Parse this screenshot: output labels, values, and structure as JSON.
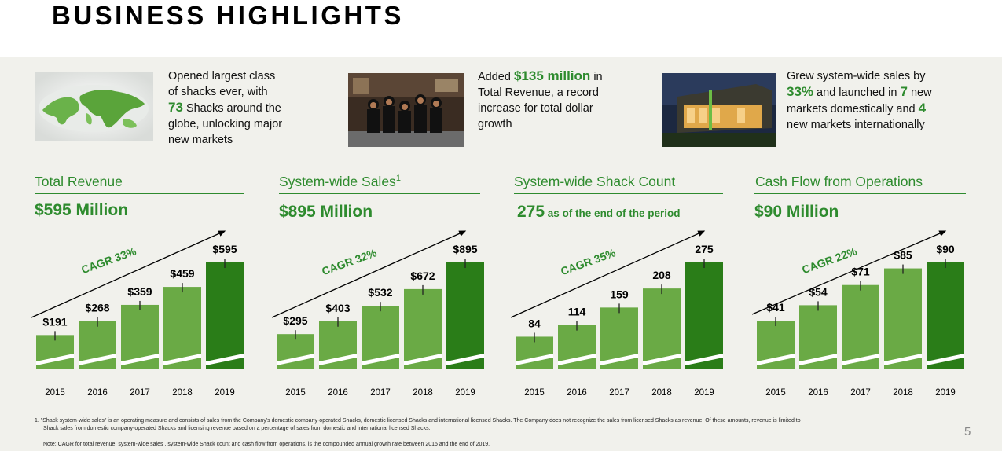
{
  "title": "BUSINESS HIGHLIGHTS",
  "highlights": [
    {
      "lines": [
        [
          {
            "t": "Opened largest class"
          }
        ],
        [
          {
            "t": "of shacks ever, with"
          }
        ],
        [
          {
            "t": "73",
            "g": true
          },
          {
            "t": " Shacks around the"
          }
        ],
        [
          {
            "t": "globe, unlocking major"
          }
        ],
        [
          {
            "t": "new markets"
          }
        ]
      ]
    },
    {
      "lines": [
        [
          {
            "t": "Added "
          },
          {
            "t": "$135 million",
            "g": true
          },
          {
            "t": " in"
          }
        ],
        [
          {
            "t": "Total Revenue, a record"
          }
        ],
        [
          {
            "t": "increase for total dollar"
          }
        ],
        [
          {
            "t": "growth"
          }
        ]
      ]
    },
    {
      "lines": [
        [
          {
            "t": "Grew system-wide sales by"
          }
        ],
        [
          {
            "t": "33%",
            "g": true
          },
          {
            "t": " and launched in "
          },
          {
            "t": "7",
            "g": true
          },
          {
            "t": " new"
          }
        ],
        [
          {
            "t": "markets domestically and "
          },
          {
            "t": "4",
            "g": true
          }
        ],
        [
          {
            "t": "new markets internationally"
          }
        ]
      ]
    }
  ],
  "sections": [
    {
      "title": "Total Revenue",
      "title_sup": "",
      "value": "$595 Million",
      "value_sub": ""
    },
    {
      "title": "System-wide Sales",
      "title_sup": "1",
      "value": "$895 Million",
      "value_sub": ""
    },
    {
      "title": "System-wide Shack Count",
      "title_sup": "",
      "value": "275",
      "value_sub": " as of the end of the period"
    },
    {
      "title": "Cash Flow from Operations",
      "title_sup": "",
      "value": "$90 Million",
      "value_sub": ""
    }
  ],
  "chart_data": [
    {
      "type": "bar",
      "categories": [
        "2015",
        "2016",
        "2017",
        "2018",
        "2019"
      ],
      "values": [
        191,
        268,
        359,
        459,
        595
      ],
      "labels": [
        "$191",
        "$268",
        "$359",
        "$459",
        "$595"
      ],
      "annotation": "CAGR 33%"
    },
    {
      "type": "bar",
      "categories": [
        "2015",
        "2016",
        "2017",
        "2018",
        "2019"
      ],
      "values": [
        295,
        403,
        532,
        672,
        895
      ],
      "labels": [
        "$295",
        "$403",
        "$532",
        "$672",
        "$895"
      ],
      "annotation": "CAGR 32%"
    },
    {
      "type": "bar",
      "categories": [
        "2015",
        "2016",
        "2017",
        "2018",
        "2019"
      ],
      "values": [
        84,
        114,
        159,
        208,
        275
      ],
      "labels": [
        "84",
        "114",
        "159",
        "208",
        "275"
      ],
      "annotation": "CAGR 35%"
    },
    {
      "type": "bar",
      "categories": [
        "2015",
        "2016",
        "2017",
        "2018",
        "2019"
      ],
      "values": [
        41,
        54,
        71,
        85,
        90
      ],
      "labels": [
        "$41",
        "$54",
        "$71",
        "$85",
        "$90"
      ],
      "annotation": "CAGR 22%"
    }
  ],
  "footnote_1": "1.  \"Shack system-wide sales\" is an operating measure and consists of sales from the Company's domestic company-operated Shacks, domestic licensed Shacks and international licensed Shacks. The Company does not recognize the sales from licensed Shacks as revenue. Of these amounts, revenue is limited to",
  "footnote_1b": "Shack sales from domestic company-operated Shacks and licensing revenue based on a percentage of sales from domestic and international licensed Shacks.",
  "footnote_note": "Note: CAGR for total revenue, system-wide sales , system-wide Shack count and cash flow from operations, is the compounded annual growth rate between 2015 and the end of 2019.",
  "page_number": "5",
  "colors": {
    "green": "#2e8b2e",
    "bar_light": "#6aaa45",
    "bar_dark": "#2a7d18"
  }
}
